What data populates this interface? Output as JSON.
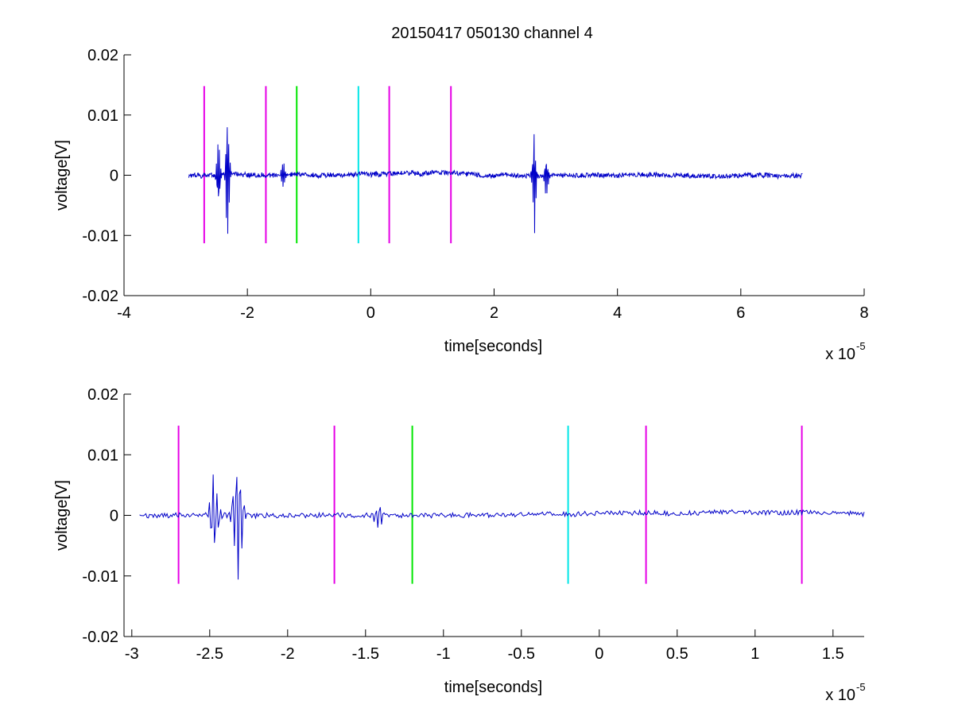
{
  "figure": {
    "title": "20150417 050130 channel 4"
  },
  "chart_data": [
    {
      "type": "line",
      "xlabel": "time[seconds]",
      "ylabel": "voltage[V]",
      "x_multiplier": {
        "base": "x 10",
        "exponent": "-5"
      },
      "xlim": [
        -4,
        8
      ],
      "ylim": [
        -0.02,
        0.02
      ],
      "xticks": [
        -4,
        -2,
        0,
        2,
        4,
        6,
        8
      ],
      "xtick_labels": [
        "-4",
        "-2",
        "0",
        "2",
        "4",
        "6",
        "8"
      ],
      "yticks": [
        -0.02,
        -0.01,
        0,
        0.01,
        0.02
      ],
      "ytick_labels": [
        "-0.02",
        "-0.01",
        "0",
        "0.01",
        "0.02"
      ],
      "grid": false,
      "series": [
        {
          "color": "#0000c8",
          "x_range": [
            -2.95,
            7.0
          ],
          "bursts": [
            {
              "x": -2.47,
              "amp": 0.0075
            },
            {
              "x": -2.32,
              "amp": 0.0135
            },
            {
              "x": -1.42,
              "amp": 0.0025
            },
            {
              "x": 2.65,
              "amp": 0.01
            },
            {
              "x": 2.85,
              "amp": 0.004
            }
          ]
        }
      ],
      "markers": [
        {
          "x": -2.7,
          "color": "#e600e6",
          "y_range": [
            -0.0113,
            0.0148
          ]
        },
        {
          "x": -1.7,
          "color": "#e600e6",
          "y_range": [
            -0.0113,
            0.0148
          ]
        },
        {
          "x": -1.2,
          "color": "#00e600",
          "y_range": [
            -0.0113,
            0.0148
          ]
        },
        {
          "x": -0.2,
          "color": "#00e6e6",
          "y_range": [
            -0.0113,
            0.0148
          ]
        },
        {
          "x": 0.3,
          "color": "#e600e6",
          "y_range": [
            -0.0113,
            0.0148
          ]
        },
        {
          "x": 1.3,
          "color": "#e600e6",
          "y_range": [
            -0.0113,
            0.0148
          ]
        }
      ]
    },
    {
      "type": "line",
      "xlabel": "time[seconds]",
      "ylabel": "voltage[V]",
      "x_multiplier": {
        "base": "x 10",
        "exponent": "-5"
      },
      "xlim": [
        -3.05,
        1.7
      ],
      "ylim": [
        -0.02,
        0.02
      ],
      "xticks": [
        -3,
        -2.5,
        -2,
        -1.5,
        -1,
        -0.5,
        0,
        0.5,
        1,
        1.5
      ],
      "xtick_labels": [
        "-3",
        "-2.5",
        "-2",
        "-1.5",
        "-1",
        "-0.5",
        "0",
        "0.5",
        "1",
        "1.5"
      ],
      "yticks": [
        -0.02,
        -0.01,
        0,
        0.01,
        0.02
      ],
      "ytick_labels": [
        "-0.02",
        "-0.01",
        "0",
        "0.01",
        "0.02"
      ],
      "grid": false,
      "series": [
        {
          "color": "#0000c8",
          "x_range": [
            -2.95,
            1.7
          ],
          "bursts": [
            {
              "x": -2.47,
              "amp": 0.0075
            },
            {
              "x": -2.32,
              "amp": 0.0135
            },
            {
              "x": -1.42,
              "amp": 0.0025
            }
          ]
        }
      ],
      "markers": [
        {
          "x": -2.7,
          "color": "#e600e6",
          "y_range": [
            -0.0113,
            0.0148
          ]
        },
        {
          "x": -1.7,
          "color": "#e600e6",
          "y_range": [
            -0.0113,
            0.0148
          ]
        },
        {
          "x": -1.2,
          "color": "#00e600",
          "y_range": [
            -0.0113,
            0.0148
          ]
        },
        {
          "x": -0.2,
          "color": "#00e6e6",
          "y_range": [
            -0.0113,
            0.0148
          ]
        },
        {
          "x": 0.3,
          "color": "#e600e6",
          "y_range": [
            -0.0113,
            0.0148
          ]
        },
        {
          "x": 1.3,
          "color": "#e600e6",
          "y_range": [
            -0.0113,
            0.0148
          ]
        }
      ]
    }
  ]
}
